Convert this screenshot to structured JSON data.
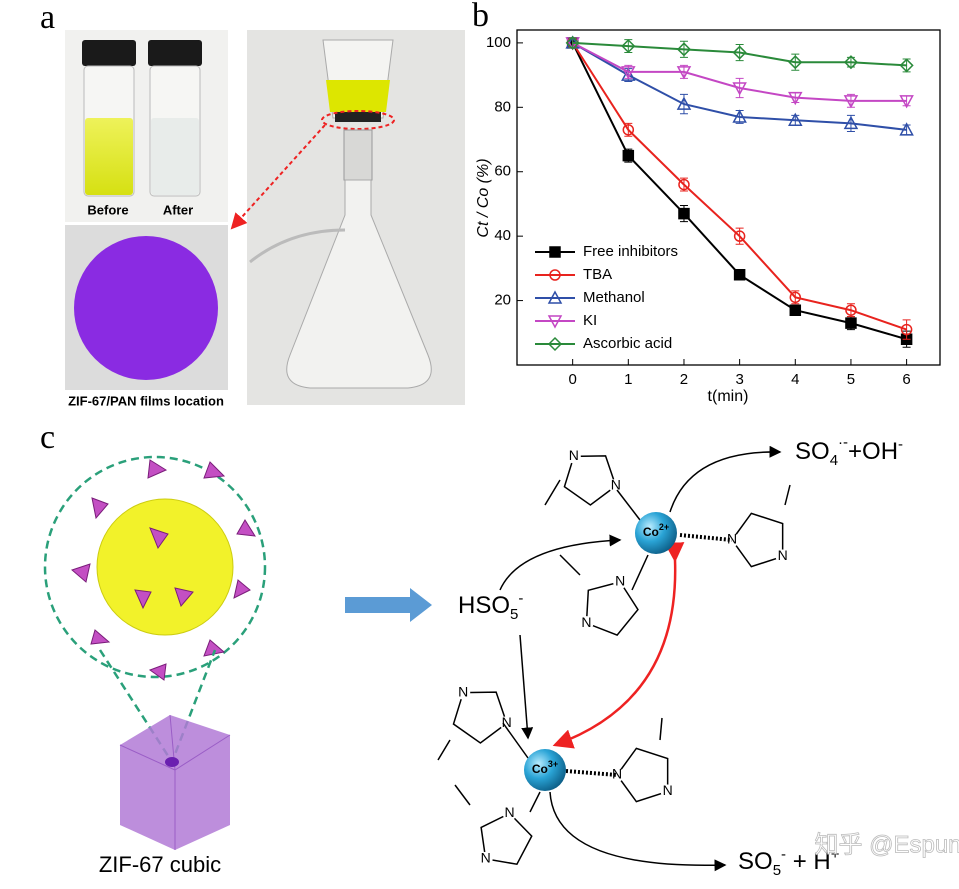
{
  "panel_labels": {
    "a": "a",
    "b": "b",
    "c": "c"
  },
  "panel_a": {
    "vial_before": "Before",
    "vial_after": "After",
    "film_caption": "ZIF-67/PAN films location"
  },
  "panel_c": {
    "cubic_caption": "ZIF-67 cubic",
    "atom_label": "N",
    "co2": {
      "base": "Co",
      "charge": "2+"
    },
    "co3": {
      "base": "Co",
      "charge": "3+"
    },
    "hso5": {
      "base": "HSO",
      "sub": "5",
      "sup": "-"
    },
    "product_top": {
      "base": "SO",
      "sub": "4",
      "sup": "·-",
      "rest": "+OH",
      "sup2": "-"
    },
    "product_bottom": {
      "base": "SO",
      "sub": "5",
      "sup": "-",
      "rest": " + H",
      "sup2": "+"
    }
  },
  "watermark": "知乎 @Espun",
  "chart_data": {
    "type": "line",
    "x_label": "t(min)",
    "y_label": "Ct / Co (%)",
    "x": [
      0,
      1,
      2,
      3,
      4,
      5,
      6
    ],
    "xlim": [
      -1,
      6.6
    ],
    "xticks": [
      0,
      1,
      2,
      3,
      4,
      5,
      6
    ],
    "ylim": [
      0,
      104
    ],
    "yticks": [
      20,
      40,
      60,
      80,
      100
    ],
    "legend": "lower-left",
    "series": [
      {
        "name": "Free inhibitors",
        "color": "#000000",
        "marker": "square",
        "values": [
          100,
          65,
          47,
          28,
          17,
          13,
          8
        ],
        "errors": [
          1.5,
          2,
          2.5,
          1.5,
          1.5,
          2,
          2.5
        ]
      },
      {
        "name": "TBA",
        "color": "#e8231e",
        "marker": "circle",
        "values": [
          100,
          73,
          56,
          40,
          21,
          17,
          11
        ],
        "errors": [
          1.5,
          2,
          2,
          2.5,
          2,
          2,
          3
        ]
      },
      {
        "name": "Methanol",
        "color": "#2f4fa8",
        "marker": "triangle-up",
        "values": [
          100,
          90,
          81,
          77,
          76,
          75,
          73
        ],
        "errors": [
          1.5,
          2,
          3,
          2,
          1.5,
          2.5,
          1.5
        ]
      },
      {
        "name": "KI",
        "color": "#c447c4",
        "marker": "triangle-down",
        "values": [
          100,
          91,
          91,
          86,
          83,
          82,
          82
        ],
        "errors": [
          1.5,
          2,
          2,
          3,
          1.5,
          2,
          1.5
        ]
      },
      {
        "name": "Ascorbic acid",
        "color": "#2a8a3a",
        "marker": "diamond",
        "values": [
          100,
          99,
          98,
          97,
          94,
          94,
          93
        ],
        "errors": [
          1.5,
          2,
          2.5,
          2.5,
          2.5,
          1.5,
          2
        ]
      }
    ]
  }
}
